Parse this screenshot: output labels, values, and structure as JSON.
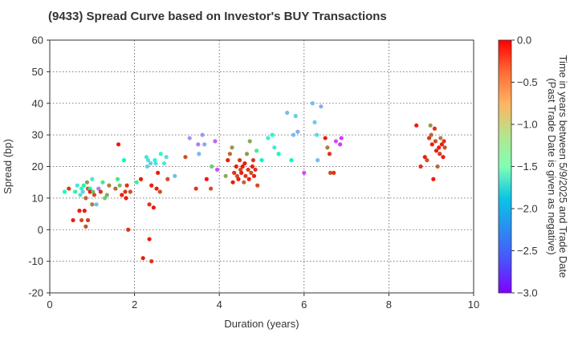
{
  "chart_data": {
    "type": "scatter",
    "title": "(9433)   Spread Curve based on Investor's BUY Transactions",
    "xlabel": "Duration (years)",
    "ylabel": "Spread (bp)",
    "xlim": [
      0,
      10
    ],
    "ylim": [
      -20,
      60
    ],
    "xticks": [
      0,
      2,
      4,
      6,
      8,
      10
    ],
    "yticks": [
      -20,
      -10,
      0,
      10,
      20,
      30,
      40,
      50,
      60
    ],
    "grid": true,
    "colormap": "rainbow",
    "colorbar": {
      "label_lines": [
        "Time in years between 5/9/2025 and Trade Date",
        "(Past Trade Date is given as negative)"
      ],
      "range": [
        -3.0,
        0.0
      ],
      "ticks": [
        "0.0",
        "−0.5",
        "−1.0",
        "−1.5",
        "−2.0",
        "−2.5",
        "−3.0"
      ]
    },
    "points": [
      [
        0.35,
        12,
        -1.6
      ],
      [
        0.45,
        13,
        -0.2
      ],
      [
        0.55,
        3,
        -0.1
      ],
      [
        0.6,
        12,
        -1.2
      ],
      [
        0.65,
        14,
        -1.9
      ],
      [
        0.7,
        6,
        -0.1
      ],
      [
        0.72,
        11,
        -2.0
      ],
      [
        0.75,
        13,
        -1.8
      ],
      [
        0.75,
        3,
        -0.3
      ],
      [
        0.78,
        12,
        -2.1
      ],
      [
        0.8,
        14,
        -1.3
      ],
      [
        0.82,
        6,
        -0.1
      ],
      [
        0.85,
        10,
        -0.4
      ],
      [
        0.85,
        1,
        -0.3
      ],
      [
        0.88,
        15,
        -0.6
      ],
      [
        0.9,
        13,
        -0.3
      ],
      [
        0.9,
        3,
        -0.2
      ],
      [
        0.95,
        13,
        -1.5
      ],
      [
        0.95,
        12,
        -0.1
      ],
      [
        1.0,
        16,
        -1.9
      ],
      [
        1.0,
        8,
        -0.5
      ],
      [
        1.02,
        12,
        -0.8
      ],
      [
        1.05,
        11,
        -0.3
      ],
      [
        1.1,
        8,
        -2.2
      ],
      [
        1.15,
        13,
        -2.5
      ],
      [
        1.2,
        12,
        -0.2
      ],
      [
        1.25,
        15,
        -1.1
      ],
      [
        1.3,
        10,
        -0.9
      ],
      [
        1.35,
        11,
        -0.7
      ],
      [
        1.4,
        14,
        -0.5
      ],
      [
        1.55,
        13,
        -0.4
      ],
      [
        1.6,
        16,
        -1.1
      ],
      [
        1.62,
        27,
        -0.1
      ],
      [
        1.65,
        14,
        -0.8
      ],
      [
        1.7,
        11,
        -0.1
      ],
      [
        1.75,
        22,
        -1.5
      ],
      [
        1.78,
        12,
        -0.2
      ],
      [
        1.8,
        10,
        -0.1
      ],
      [
        1.82,
        14,
        -0.2
      ],
      [
        1.85,
        0,
        -0.2
      ],
      [
        1.9,
        12,
        -0.3
      ],
      [
        2.05,
        15,
        -1.2
      ],
      [
        2.15,
        16,
        -0.1
      ],
      [
        2.2,
        -9,
        -0.1
      ],
      [
        2.28,
        23,
        -1.9
      ],
      [
        2.3,
        20,
        -2.1
      ],
      [
        2.32,
        22,
        -2.0
      ],
      [
        2.35,
        -3,
        -0.1
      ],
      [
        2.35,
        8,
        -0.2
      ],
      [
        2.38,
        21,
        -2.1
      ],
      [
        2.4,
        14,
        -0.1
      ],
      [
        2.4,
        -10,
        -0.2
      ],
      [
        2.45,
        7,
        -0.1
      ],
      [
        2.48,
        22,
        -1.8
      ],
      [
        2.5,
        21,
        -2.0
      ],
      [
        2.52,
        13,
        -0.1
      ],
      [
        2.55,
        18,
        -0.1
      ],
      [
        2.6,
        12,
        -0.3
      ],
      [
        2.62,
        24,
        -1.8
      ],
      [
        2.7,
        21,
        -1.9
      ],
      [
        2.75,
        23,
        -2.0
      ],
      [
        2.78,
        16,
        -0.3
      ],
      [
        2.95,
        17,
        -2.2
      ],
      [
        3.2,
        23,
        -0.3
      ],
      [
        3.3,
        29,
        -2.4
      ],
      [
        3.45,
        13,
        -0.2
      ],
      [
        3.5,
        27,
        -2.5
      ],
      [
        3.52,
        24,
        -2.2
      ],
      [
        3.6,
        30,
        -2.4
      ],
      [
        3.65,
        27,
        -2.3
      ],
      [
        3.7,
        16,
        -0.1
      ],
      [
        3.8,
        13,
        -0.3
      ],
      [
        3.82,
        20,
        -0.9
      ],
      [
        3.9,
        28,
        -2.6
      ],
      [
        3.95,
        19,
        -2.7
      ],
      [
        4.15,
        17,
        -0.7
      ],
      [
        4.2,
        22,
        -0.1
      ],
      [
        4.25,
        24,
        -0.4
      ],
      [
        4.3,
        26,
        -0.6
      ],
      [
        4.32,
        15,
        -0.1
      ],
      [
        4.35,
        18,
        -0.2
      ],
      [
        4.4,
        20,
        -0.1
      ],
      [
        4.42,
        17,
        -0.3
      ],
      [
        4.45,
        16,
        -0.1
      ],
      [
        4.48,
        22,
        -0.2
      ],
      [
        4.5,
        19,
        -0.3
      ],
      [
        4.52,
        18,
        -0.1
      ],
      [
        4.55,
        20,
        -0.1
      ],
      [
        4.58,
        15,
        -0.4
      ],
      [
        4.6,
        21,
        -0.1
      ],
      [
        4.62,
        17,
        -0.2
      ],
      [
        4.65,
        24,
        -0.6
      ],
      [
        4.68,
        19,
        -0.2
      ],
      [
        4.7,
        16,
        -0.1
      ],
      [
        4.72,
        28,
        -0.7
      ],
      [
        4.75,
        18,
        -0.3
      ],
      [
        4.78,
        20,
        -0.1
      ],
      [
        4.8,
        22,
        -0.2
      ],
      [
        4.82,
        17,
        -0.1
      ],
      [
        4.85,
        19,
        -0.2
      ],
      [
        4.88,
        25,
        -1.2
      ],
      [
        4.9,
        14,
        -0.3
      ],
      [
        5.0,
        22,
        -1.5
      ],
      [
        5.15,
        29,
        -1.8
      ],
      [
        5.25,
        30,
        -1.7
      ],
      [
        5.3,
        26,
        -1.9
      ],
      [
        5.4,
        24,
        -1.6
      ],
      [
        5.6,
        37,
        -2.2
      ],
      [
        5.7,
        22,
        -1.5
      ],
      [
        5.75,
        30,
        -2.2
      ],
      [
        5.8,
        36,
        -2.1
      ],
      [
        5.85,
        31,
        -2.3
      ],
      [
        6.0,
        18,
        -2.7
      ],
      [
        6.2,
        40,
        -2.2
      ],
      [
        6.25,
        34,
        -2.1
      ],
      [
        6.3,
        30,
        -2.0
      ],
      [
        6.32,
        22,
        -2.2
      ],
      [
        6.4,
        39,
        -2.3
      ],
      [
        6.5,
        29,
        -0.1
      ],
      [
        6.55,
        26,
        -0.5
      ],
      [
        6.6,
        24,
        -0.2
      ],
      [
        6.62,
        18,
        -0.3
      ],
      [
        6.7,
        18,
        -0.2
      ],
      [
        6.75,
        28,
        -2.7
      ],
      [
        6.85,
        27,
        -2.8
      ],
      [
        6.88,
        29,
        -2.8
      ],
      [
        8.65,
        33,
        -0.1
      ],
      [
        8.75,
        20,
        -0.2
      ],
      [
        8.85,
        23,
        -0.1
      ],
      [
        8.9,
        22,
        -0.3
      ],
      [
        8.95,
        29,
        -0.2
      ],
      [
        8.98,
        33,
        -0.6
      ],
      [
        9.0,
        30,
        -0.4
      ],
      [
        9.02,
        27,
        -0.1
      ],
      [
        9.05,
        16,
        -0.1
      ],
      [
        9.08,
        32,
        -0.2
      ],
      [
        9.1,
        28,
        -0.3
      ],
      [
        9.12,
        25,
        -0.1
      ],
      [
        9.15,
        20,
        -0.4
      ],
      [
        9.18,
        26,
        -0.1
      ],
      [
        9.2,
        24,
        -0.2
      ],
      [
        9.22,
        29,
        -0.5
      ],
      [
        9.25,
        27,
        -0.1
      ],
      [
        9.28,
        23,
        -0.1
      ],
      [
        9.3,
        28,
        -0.2
      ],
      [
        9.32,
        26,
        -0.3
      ]
    ]
  }
}
